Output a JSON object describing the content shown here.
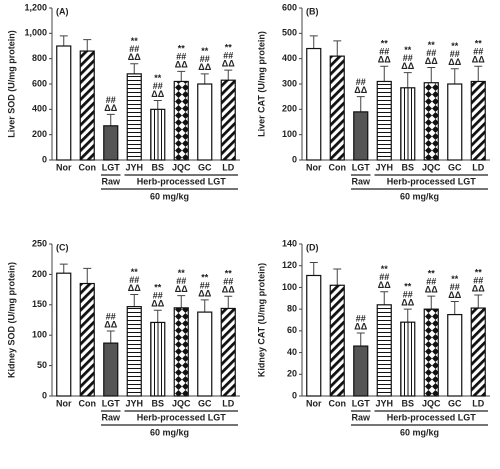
{
  "chart_data": [
    {
      "type": "bar",
      "panel": "(A)",
      "ylabel": "Liver SOD (U/mg protein)",
      "categories": [
        "Nor",
        "Con",
        "LGT",
        "JYH",
        "BS",
        "JQC",
        "GC",
        "LD"
      ],
      "values": [
        900,
        860,
        270,
        680,
        400,
        620,
        600,
        630
      ],
      "errors": [
        80,
        90,
        90,
        80,
        70,
        80,
        80,
        80
      ],
      "annotations": [
        [],
        [],
        [
          "##",
          "ΔΔ"
        ],
        [
          "**",
          "##",
          "ΔΔ"
        ],
        [
          "**",
          "##",
          "ΔΔ"
        ],
        [
          "**",
          "##",
          "ΔΔ"
        ],
        [
          "**",
          "##",
          "ΔΔ"
        ],
        [
          "**",
          "##",
          "ΔΔ"
        ]
      ],
      "patterns": [
        "none",
        "diagonal",
        "solid",
        "horizontal",
        "vertical",
        "diamond",
        "none",
        "diagonal"
      ],
      "groups": [
        {
          "label": "Raw",
          "from": 2,
          "to": 2
        },
        {
          "label": "Herb-processed LGT",
          "from": 3,
          "to": 7
        }
      ],
      "dose": {
        "label": "60 mg/kg",
        "from": 2,
        "to": 7
      },
      "ylim": [
        0,
        1200
      ],
      "yticks": [
        0,
        200,
        400,
        600,
        800,
        {
          "value": 1000,
          "label": "1,000"
        },
        {
          "value": 1200,
          "label": "1,200"
        }
      ]
    },
    {
      "type": "bar",
      "panel": "(B)",
      "ylabel": "Liver CAT (U/mg protein)",
      "categories": [
        "Nor",
        "Con",
        "LGT",
        "JYH",
        "BS",
        "JQC",
        "GC",
        "LD"
      ],
      "values": [
        440,
        410,
        190,
        310,
        285,
        305,
        300,
        310
      ],
      "errors": [
        50,
        60,
        60,
        60,
        60,
        60,
        60,
        60
      ],
      "annotations": [
        [],
        [],
        [
          "##",
          "ΔΔ"
        ],
        [
          "**",
          "##",
          "ΔΔ"
        ],
        [
          "**",
          "##",
          "ΔΔ"
        ],
        [
          "**",
          "##",
          "ΔΔ"
        ],
        [
          "**",
          "##",
          "ΔΔ"
        ],
        [
          "**",
          "##",
          "ΔΔ"
        ]
      ],
      "patterns": [
        "none",
        "diagonal",
        "solid",
        "horizontal",
        "vertical",
        "diamond",
        "none",
        "diagonal"
      ],
      "groups": [
        {
          "label": "Raw",
          "from": 2,
          "to": 2
        },
        {
          "label": "Herb-processed LGT",
          "from": 3,
          "to": 7
        }
      ],
      "dose": {
        "label": "60 mg/kg",
        "from": 2,
        "to": 7
      },
      "ylim": [
        0,
        600
      ],
      "yticks": [
        0,
        100,
        200,
        300,
        400,
        500,
        600
      ]
    },
    {
      "type": "bar",
      "panel": "(C)",
      "ylabel": "Kidney SOD (U/mg protein)",
      "categories": [
        "Nor",
        "Con",
        "LGT",
        "JYH",
        "BS",
        "JQC",
        "GC",
        "LD"
      ],
      "values": [
        202,
        185,
        87,
        147,
        121,
        145,
        138,
        144
      ],
      "errors": [
        15,
        25,
        20,
        20,
        20,
        20,
        20,
        20
      ],
      "annotations": [
        [],
        [],
        [
          "##",
          "ΔΔ"
        ],
        [
          "**",
          "##",
          "ΔΔ"
        ],
        [
          "**",
          "##",
          "ΔΔ"
        ],
        [
          "**",
          "##",
          "ΔΔ"
        ],
        [
          "**",
          "##",
          "ΔΔ"
        ],
        [
          "**",
          "##",
          "ΔΔ"
        ]
      ],
      "patterns": [
        "none",
        "diagonal",
        "solid",
        "horizontal",
        "vertical",
        "diamond",
        "none",
        "diagonal"
      ],
      "groups": [
        {
          "label": "Raw",
          "from": 2,
          "to": 2
        },
        {
          "label": "Herb-processed LGT",
          "from": 3,
          "to": 7
        }
      ],
      "dose": {
        "label": "60 mg/kg",
        "from": 2,
        "to": 7
      },
      "ylim": [
        0,
        250
      ],
      "yticks": [
        0,
        50,
        100,
        150,
        200,
        250
      ]
    },
    {
      "type": "bar",
      "panel": "(D)",
      "ylabel": "Kidney CAT (U/mg protein)",
      "categories": [
        "Nor",
        "Con",
        "LGT",
        "JYH",
        "BS",
        "JQC",
        "GC",
        "LD"
      ],
      "values": [
        111,
        102,
        46,
        84,
        68,
        80,
        75,
        81
      ],
      "errors": [
        12,
        15,
        12,
        12,
        12,
        12,
        12,
        12
      ],
      "annotations": [
        [],
        [],
        [
          "##",
          "ΔΔ"
        ],
        [
          "**",
          "##",
          "ΔΔ"
        ],
        [
          "**",
          "##",
          "ΔΔ"
        ],
        [
          "**",
          "##",
          "ΔΔ"
        ],
        [
          "**",
          "##",
          "ΔΔ"
        ],
        [
          "**",
          "##",
          "ΔΔ"
        ]
      ],
      "patterns": [
        "none",
        "diagonal",
        "solid",
        "horizontal",
        "vertical",
        "diamond",
        "none",
        "diagonal"
      ],
      "groups": [
        {
          "label": "Raw",
          "from": 2,
          "to": 2
        },
        {
          "label": "Herb-processed LGT",
          "from": 3,
          "to": 7
        }
      ],
      "dose": {
        "label": "60 mg/kg",
        "from": 2,
        "to": 7
      },
      "ylim": [
        0,
        140
      ],
      "yticks": [
        0,
        20,
        40,
        60,
        80,
        100,
        120,
        140
      ]
    }
  ]
}
